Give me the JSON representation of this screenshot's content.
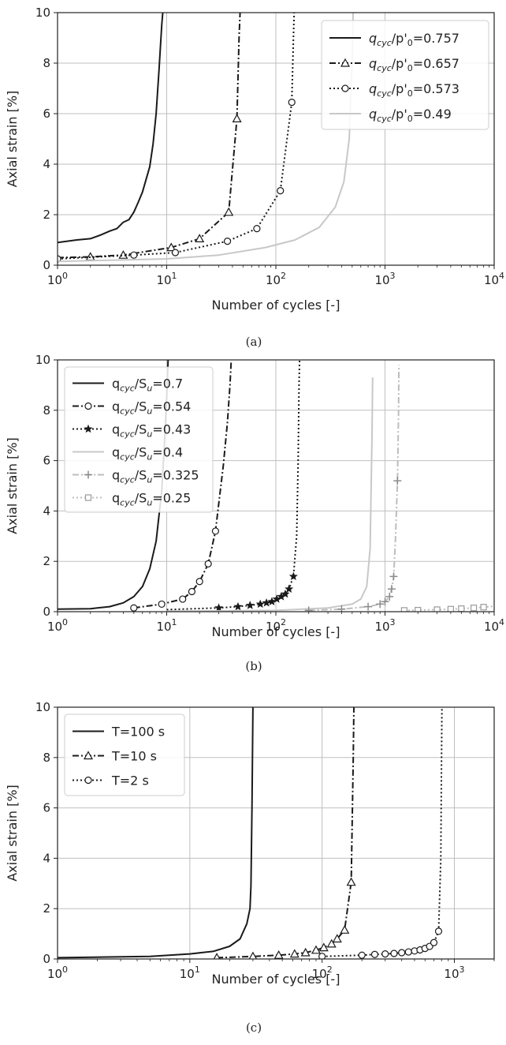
{
  "chart_data": [
    {
      "type": "line",
      "caption": "(a)",
      "xlabel": "Number of cycles [-]",
      "ylabel": "Axial strain [%]",
      "xscale": "log",
      "xlim": [
        1,
        10000
      ],
      "ylim": [
        0,
        10
      ],
      "x_ticks": [
        {
          "base": "10",
          "exp": "0"
        },
        {
          "base": "10",
          "exp": "1"
        },
        {
          "base": "10",
          "exp": "2"
        },
        {
          "base": "10",
          "exp": "3"
        },
        {
          "base": "10",
          "exp": "4"
        }
      ],
      "y_ticks": [
        "0",
        "2",
        "4",
        "6",
        "8",
        "10"
      ],
      "grid": true,
      "legend_position": "top-right",
      "series": [
        {
          "legend": [
            "q",
            "cyc",
            "/p'",
            "0",
            "=0.757"
          ],
          "color": "#1a1a1a",
          "style": "solid",
          "marker": "none",
          "x": [
            1,
            1.5,
            2,
            2.5,
            3,
            3.5,
            4,
            4.5,
            5,
            5.5,
            6,
            7,
            7.5,
            8,
            8.5,
            9,
            9.2
          ],
          "y": [
            0.9,
            1.0,
            1.05,
            1.2,
            1.35,
            1.45,
            1.7,
            1.8,
            2.1,
            2.5,
            2.9,
            3.9,
            4.8,
            6.0,
            7.7,
            9.5,
            10
          ]
        },
        {
          "legend": [
            "q",
            "cyc",
            "/p'",
            "0",
            "=0.657"
          ],
          "color": "#1a1a1a",
          "style": "dashdot",
          "marker": "triangle",
          "x": [
            1,
            2,
            4,
            11,
            20,
            37,
            44,
            46,
            47
          ],
          "y": [
            0.3,
            0.33,
            0.4,
            0.7,
            1.05,
            2.1,
            5.8,
            9,
            10
          ],
          "markers_x": [
            2,
            4,
            11,
            20,
            37,
            44
          ],
          "markers_y": [
            0.33,
            0.4,
            0.7,
            1.05,
            2.1,
            5.8
          ]
        },
        {
          "legend": [
            "q",
            "cyc",
            "/p'",
            "0",
            "=0.573"
          ],
          "color": "#1a1a1a",
          "style": "dotted",
          "marker": "circle",
          "x": [
            1,
            5,
            12,
            36,
            67,
            110,
            140,
            145,
            147
          ],
          "y": [
            0.25,
            0.4,
            0.5,
            0.95,
            1.45,
            2.95,
            6.45,
            9,
            10
          ],
          "markers_x": [
            1,
            5,
            12,
            36,
            67,
            110,
            140
          ],
          "markers_y": [
            0.25,
            0.4,
            0.5,
            0.95,
            1.45,
            2.95,
            6.45
          ]
        },
        {
          "legend": [
            "q",
            "cyc",
            "/p'",
            "0",
            "=0.49"
          ],
          "color": "#c8c8c8",
          "style": "solid",
          "marker": "none",
          "x": [
            1,
            10,
            30,
            80,
            150,
            250,
            350,
            420,
            470,
            500,
            510
          ],
          "y": [
            0.15,
            0.25,
            0.4,
            0.7,
            1.0,
            1.5,
            2.3,
            3.3,
            5.0,
            8.0,
            10
          ]
        }
      ]
    },
    {
      "type": "line",
      "caption": "(b)",
      "xlabel": "Number of cycles [-]",
      "ylabel": "Axial strain [%]",
      "xscale": "log",
      "xlim": [
        1,
        10000
      ],
      "ylim": [
        0,
        10
      ],
      "x_ticks": [
        {
          "base": "10",
          "exp": "0"
        },
        {
          "base": "10",
          "exp": "1"
        },
        {
          "base": "10",
          "exp": "2"
        },
        {
          "base": "10",
          "exp": "3"
        },
        {
          "base": "10",
          "exp": "4"
        }
      ],
      "y_ticks": [
        "0",
        "2",
        "4",
        "6",
        "8",
        "10"
      ],
      "grid": true,
      "legend_position": "top-left",
      "series": [
        {
          "legend": [
            "q",
            "cyc",
            "/S",
            "u",
            "=0.7"
          ],
          "color": "#1a1a1a",
          "style": "solid",
          "marker": "none",
          "x": [
            1,
            2,
            3,
            4,
            5,
            6,
            7,
            8,
            9,
            9.5,
            10,
            10.3
          ],
          "y": [
            0.1,
            0.12,
            0.2,
            0.35,
            0.6,
            1.0,
            1.7,
            2.8,
            4.8,
            6.5,
            8.5,
            10
          ]
        },
        {
          "legend": [
            "q",
            "cyc",
            "/S",
            "u",
            "=0.54"
          ],
          "color": "#1a1a1a",
          "style": "dashdot",
          "marker": "circle",
          "x": [
            5,
            9,
            14,
            17,
            20,
            24,
            28,
            33,
            36,
            38,
            39
          ],
          "y": [
            0.15,
            0.3,
            0.5,
            0.8,
            1.2,
            1.9,
            3.2,
            5.8,
            7.5,
            9,
            10
          ],
          "markers_x": [
            5,
            9,
            14,
            17,
            20,
            24,
            28
          ],
          "markers_y": [
            0.15,
            0.3,
            0.5,
            0.8,
            1.2,
            1.9,
            3.2
          ]
        },
        {
          "legend": [
            "q",
            "cyc",
            "/S",
            "u",
            "=0.43"
          ],
          "color": "#1a1a1a",
          "style": "dotted",
          "marker": "star",
          "x": [
            10,
            30,
            45,
            58,
            72,
            82,
            92,
            102,
            112,
            122,
            132,
            145,
            155,
            160,
            163,
            165
          ],
          "y": [
            0.08,
            0.15,
            0.2,
            0.25,
            0.3,
            0.35,
            0.4,
            0.5,
            0.6,
            0.7,
            0.9,
            1.4,
            3.0,
            6.0,
            9.0,
            10
          ],
          "markers_x": [
            30,
            45,
            58,
            72,
            82,
            92,
            102,
            112,
            122,
            132,
            145
          ],
          "markers_y": [
            0.15,
            0.2,
            0.25,
            0.3,
            0.35,
            0.4,
            0.5,
            0.6,
            0.7,
            0.9,
            1.4
          ]
        },
        {
          "legend": [
            "q",
            "cyc",
            "/S",
            "u",
            "=0.4"
          ],
          "color": "#c8c8c8",
          "style": "solid",
          "marker": "none",
          "x": [
            10,
            100,
            300,
            500,
            600,
            680,
            730,
            760,
            770
          ],
          "y": [
            0.02,
            0.05,
            0.15,
            0.3,
            0.5,
            1.0,
            2.5,
            7.0,
            9.3
          ]
        },
        {
          "legend": [
            "q",
            "cyc",
            "/S",
            "u",
            "=0.325"
          ],
          "color": "#bdbdbd",
          "style": "dashdot",
          "marker": "plus",
          "x": [
            200,
            400,
            700,
            900,
            1000,
            1100,
            1150,
            1200,
            1250,
            1300,
            1330,
            1340
          ],
          "y": [
            0.05,
            0.1,
            0.2,
            0.3,
            0.4,
            0.6,
            0.9,
            1.4,
            3.0,
            5.2,
            8.0,
            9.8
          ],
          "markers_x": [
            200,
            400,
            700,
            900,
            1000,
            1100,
            1150,
            1200,
            1300
          ],
          "markers_y": [
            0.05,
            0.1,
            0.2,
            0.3,
            0.4,
            0.6,
            0.9,
            1.4,
            5.2
          ],
          "marker_color": "#8c8c8c"
        },
        {
          "legend": [
            "q",
            "cyc",
            "/S",
            "u",
            "=0.25"
          ],
          "color": "#bdbdbd",
          "style": "dotted",
          "marker": "square",
          "x": [
            1500,
            2000,
            3000,
            4000,
            5000,
            6500,
            8000,
            10000
          ],
          "y": [
            0.05,
            0.06,
            0.08,
            0.1,
            0.12,
            0.15,
            0.18,
            0.22
          ],
          "markers_x": [
            1500,
            2000,
            3000,
            4000,
            5000,
            6500,
            8000
          ],
          "markers_y": [
            0.05,
            0.06,
            0.08,
            0.1,
            0.12,
            0.15,
            0.18
          ],
          "marker_color": "#9a9a9a"
        }
      ]
    },
    {
      "type": "line",
      "caption": "(c)",
      "xlabel": "Number of cycles [-]",
      "ylabel": "Axial strain [%]",
      "xscale": "log",
      "xlim": [
        1,
        2000
      ],
      "ylim": [
        0,
        10
      ],
      "x_ticks": [
        {
          "base": "10",
          "exp": "0"
        },
        {
          "base": "10",
          "exp": "1"
        },
        {
          "base": "10",
          "exp": "2"
        },
        {
          "base": "10",
          "exp": "3"
        }
      ],
      "y_ticks": [
        "0",
        "2",
        "4",
        "6",
        "8",
        "10"
      ],
      "grid": true,
      "legend_position": "top-left",
      "series": [
        {
          "legend": [
            "T=100 s"
          ],
          "color": "#1a1a1a",
          "style": "solid",
          "marker": "none",
          "x": [
            1,
            5,
            10,
            15,
            20,
            24,
            27,
            28.5,
            29,
            29.5,
            30
          ],
          "y": [
            0.05,
            0.1,
            0.2,
            0.3,
            0.5,
            0.8,
            1.4,
            2.0,
            2.9,
            6,
            10
          ]
        },
        {
          "legend": [
            "T=10 s"
          ],
          "color": "#1a1a1a",
          "style": "dashdot",
          "marker": "triangle",
          "x": [
            16,
            30,
            47,
            62,
            75,
            90,
            103,
            118,
            130,
            148,
            166,
            172,
            174
          ],
          "y": [
            0.05,
            0.1,
            0.15,
            0.2,
            0.25,
            0.35,
            0.45,
            0.6,
            0.8,
            1.15,
            3.05,
            8.0,
            10
          ],
          "markers_x": [
            16,
            30,
            47,
            62,
            75,
            90,
            103,
            118,
            130,
            148,
            166
          ],
          "markers_y": [
            0.05,
            0.1,
            0.15,
            0.2,
            0.25,
            0.35,
            0.45,
            0.6,
            0.8,
            1.15,
            3.05
          ]
        },
        {
          "legend": [
            "T=2 s"
          ],
          "color": "#1a1a1a",
          "style": "dotted",
          "marker": "circle",
          "x": [
            100,
            200,
            250,
            300,
            350,
            400,
            450,
            500,
            550,
            600,
            650,
            700,
            760,
            790,
            800,
            805
          ],
          "y": [
            0.1,
            0.15,
            0.18,
            0.2,
            0.22,
            0.25,
            0.28,
            0.32,
            0.36,
            0.42,
            0.5,
            0.65,
            1.1,
            4.0,
            8.0,
            10
          ],
          "markers_x": [
            100,
            200,
            250,
            300,
            350,
            400,
            450,
            500,
            550,
            600,
            650,
            700,
            760
          ],
          "markers_y": [
            0.1,
            0.15,
            0.18,
            0.2,
            0.22,
            0.25,
            0.28,
            0.32,
            0.36,
            0.42,
            0.5,
            0.65,
            1.1
          ]
        }
      ]
    }
  ]
}
